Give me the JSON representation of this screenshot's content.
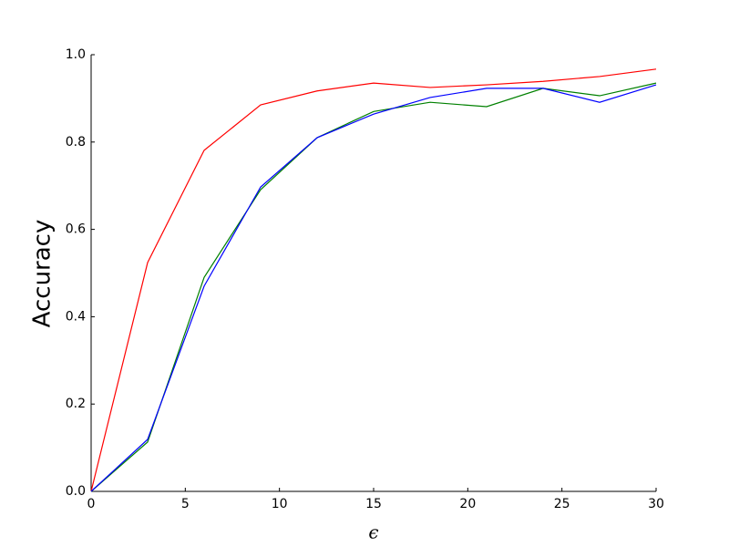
{
  "chart_data": {
    "type": "line",
    "x_label": "ϵ",
    "y_label": "Accuracy",
    "x": [
      0,
      3,
      6,
      9,
      12,
      15,
      18,
      21,
      24,
      27,
      30
    ],
    "series": [
      {
        "color": "#ff0000",
        "values": [
          0,
          0.524,
          0.781,
          0.885,
          0.917,
          0.935,
          0.925,
          0.931,
          0.939,
          0.95,
          0.967
        ]
      },
      {
        "color": "#008000",
        "values": [
          0,
          0.113,
          0.49,
          0.691,
          0.81,
          0.87,
          0.891,
          0.881,
          0.923,
          0.906,
          0.935
        ]
      },
      {
        "color": "#0000ff",
        "values": [
          0,
          0.119,
          0.47,
          0.697,
          0.81,
          0.864,
          0.902,
          0.923,
          0.923,
          0.891,
          0.931
        ]
      }
    ],
    "xlim": [
      0,
      30
    ],
    "xticks": [
      0,
      5,
      10,
      15,
      20,
      25,
      30
    ],
    "ylim": [
      0,
      1
    ],
    "yticks": [
      {
        "value": 0,
        "label": "0.0"
      },
      {
        "value": 0.2,
        "label": "0.2"
      },
      {
        "value": 0.4,
        "label": "0.4"
      },
      {
        "value": 0.6,
        "label": "0.6"
      },
      {
        "value": 0.8,
        "label": "0.8"
      },
      {
        "value": 1,
        "label": "1.0"
      }
    ],
    "grid": false
  }
}
